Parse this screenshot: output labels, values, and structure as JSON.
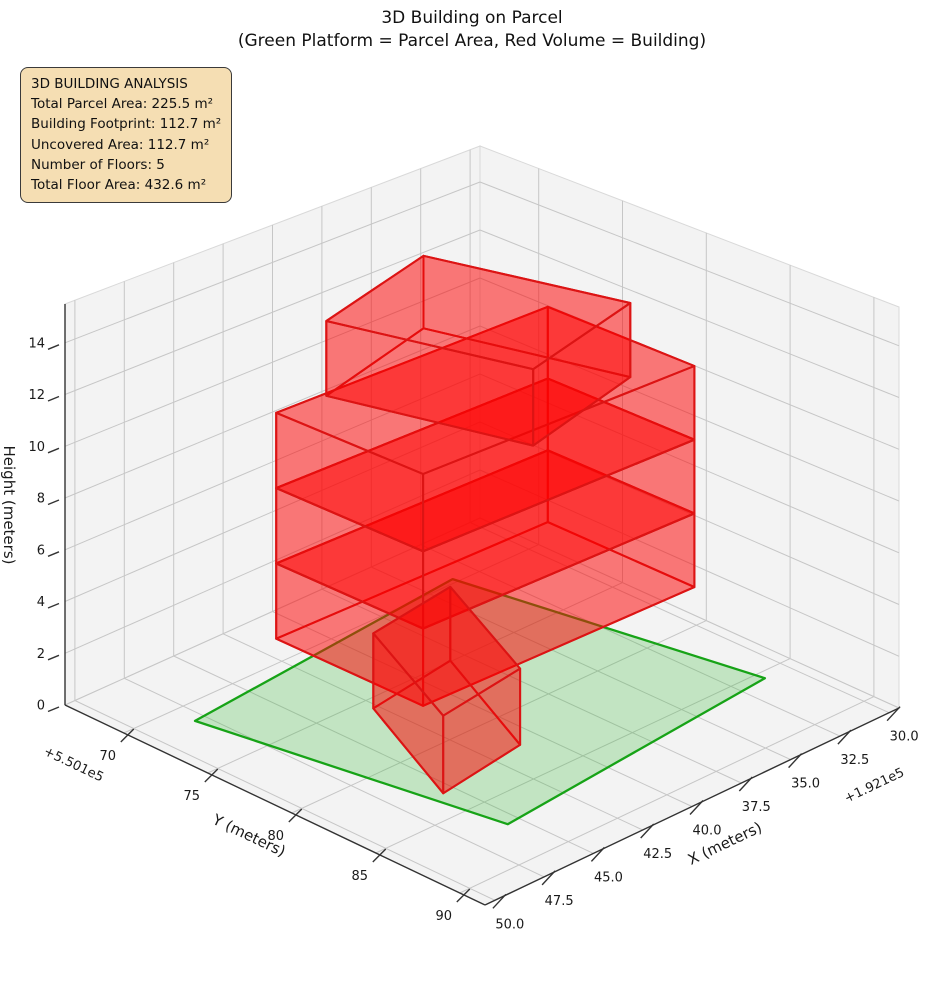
{
  "title": {
    "line1": "3D Building on Parcel",
    "line2": "(Green Platform = Parcel Area, Red Volume = Building)"
  },
  "annotation_box": {
    "background": "#f5deb3",
    "border_color": "#3a3a3a",
    "lines": [
      "3D BUILDING ANALYSIS",
      "Total Parcel Area: 225.5 m²",
      "Building Footprint: 112.7 m²",
      "Uncovered Area: 112.7 m²",
      "Number of Floors: 5",
      "Total Floor Area: 432.6 m²"
    ]
  },
  "chart_data": {
    "type": "3d-building",
    "title": "3D Building on Parcel",
    "subtitle": "(Green Platform = Parcel Area, Red Volume = Building)",
    "stats": {
      "total_parcel_area_m2": 225.5,
      "building_footprint_m2": 112.7,
      "uncovered_area_m2": 112.7,
      "number_of_floors": 5,
      "total_floor_area_m2": 432.6
    },
    "axes": {
      "x": {
        "label": "X (meters)",
        "offset_text": "+1.921e5",
        "range": [
          29.5,
          50.5
        ],
        "ticks": [
          30,
          32.5,
          35,
          37.5,
          40,
          42.5,
          45,
          47.5,
          50
        ],
        "tick_labels": [
          "30.0",
          "32.5",
          "35.0",
          "37.5",
          "40.0",
          "42.5",
          "45.0",
          "47.5",
          "50.0"
        ]
      },
      "y": {
        "label": "Y (meters)",
        "offset_text": "+5.501e5",
        "range": [
          66.5,
          91.5
        ],
        "ticks": [
          70,
          75,
          80,
          85,
          90
        ],
        "tick_labels": [
          "70",
          "75",
          "80",
          "85",
          "90"
        ]
      },
      "z": {
        "label": "Height (meters)",
        "range": [
          0,
          15.5
        ],
        "ticks": [
          0,
          2,
          4,
          6,
          8,
          10,
          12,
          14
        ],
        "tick_labels": [
          "0",
          "2",
          "4",
          "6",
          "8",
          "10",
          "12",
          "14"
        ]
      }
    },
    "parcel": {
      "corners_xy": [
        [
          45.6,
          87.1
        ],
        [
          48.0,
          71.3
        ],
        [
          33.6,
          69.7
        ],
        [
          31.2,
          85.5
        ]
      ],
      "z": 0,
      "fill": "#2eb82e",
      "fill_opacity": 0.25,
      "edge": "#17a317"
    },
    "building": {
      "fill": "#ff0000",
      "fill_opacity": 0.3,
      "edge": "#dc1414",
      "floors": [
        {
          "name": "floor-1",
          "quad": [
            [
              45.57,
              83.22
            ],
            [
              42.74,
              75.73
            ],
            [
              38.16,
              74.93
            ],
            [
              40.99,
              82.42
            ]
          ],
          "z": [
            0,
            2.9
          ]
        },
        {
          "name": "floor-2",
          "quad": [
            [
              45.53,
              81.98
            ],
            [
              45.53,
              73.23
            ],
            [
              32.01,
              73.5
            ],
            [
              32.01,
              82.25
            ]
          ],
          "z": [
            2.9,
            5.8
          ]
        },
        {
          "name": "floor-3",
          "quad": [
            [
              45.53,
              81.98
            ],
            [
              45.53,
              73.23
            ],
            [
              32.01,
              73.5
            ],
            [
              32.01,
              82.25
            ]
          ],
          "z": [
            5.8,
            8.7
          ]
        },
        {
          "name": "floor-4",
          "quad": [
            [
              45.53,
              81.98
            ],
            [
              45.53,
              73.23
            ],
            [
              32.01,
              73.5
            ],
            [
              32.01,
              82.25
            ]
          ],
          "z": [
            8.7,
            11.6
          ]
        },
        {
          "name": "floor-5",
          "quad": [
            [
              40.99,
              83.2
            ],
            [
              43.19,
              73.46
            ],
            [
              36.51,
              71.39
            ],
            [
              34.31,
              81.13
            ]
          ],
          "z": [
            11.6,
            14.5
          ]
        }
      ],
      "draw_order": [
        "floor-2",
        "floor-3",
        "floor-4",
        "floor-1",
        "floor-5"
      ]
    },
    "style": {
      "pane": "#f3f3f3",
      "pane_edge": "#d9d9d9",
      "grid": "#c6c6c6",
      "spine": "#333333",
      "tick_text": "#1a1a1a"
    }
  }
}
